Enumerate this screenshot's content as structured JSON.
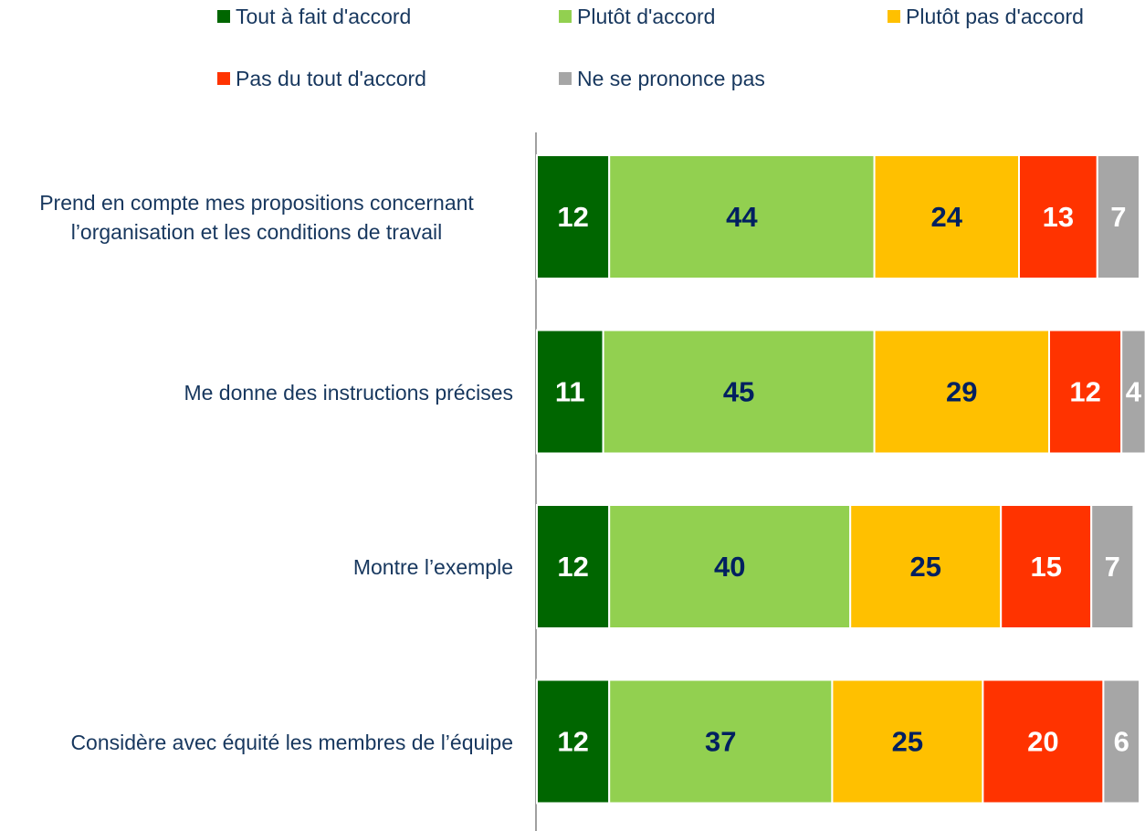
{
  "chart_data": {
    "type": "stacked_barh",
    "categories": [
      "Prend en compte mes propositions concernant l’organisation et les conditions de travail",
      "Me donne des instructions précises",
      "Montre l’exemple",
      "Considère avec équité les membres de l’équipe"
    ],
    "series": [
      {
        "name": "Tout à fait d'accord",
        "color": "#006600",
        "label_color": "#ffffff",
        "values": [
          12,
          11,
          12,
          12
        ]
      },
      {
        "name": "Plutôt d'accord",
        "color": "#92d050",
        "label_color": "#002060",
        "values": [
          44,
          45,
          40,
          37
        ]
      },
      {
        "name": "Plutôt pas d'accord",
        "color": "#ffc000",
        "label_color": "#002060",
        "values": [
          24,
          29,
          25,
          25
        ]
      },
      {
        "name": "Pas du tout d'accord",
        "color": "#ff3300",
        "label_color": "#ffffff",
        "values": [
          13,
          12,
          15,
          20
        ]
      },
      {
        "name": "Ne se prononce pas",
        "color": "#a6a6a6",
        "label_color": "#ffffff",
        "values": [
          7,
          4,
          7,
          6
        ]
      }
    ]
  }
}
